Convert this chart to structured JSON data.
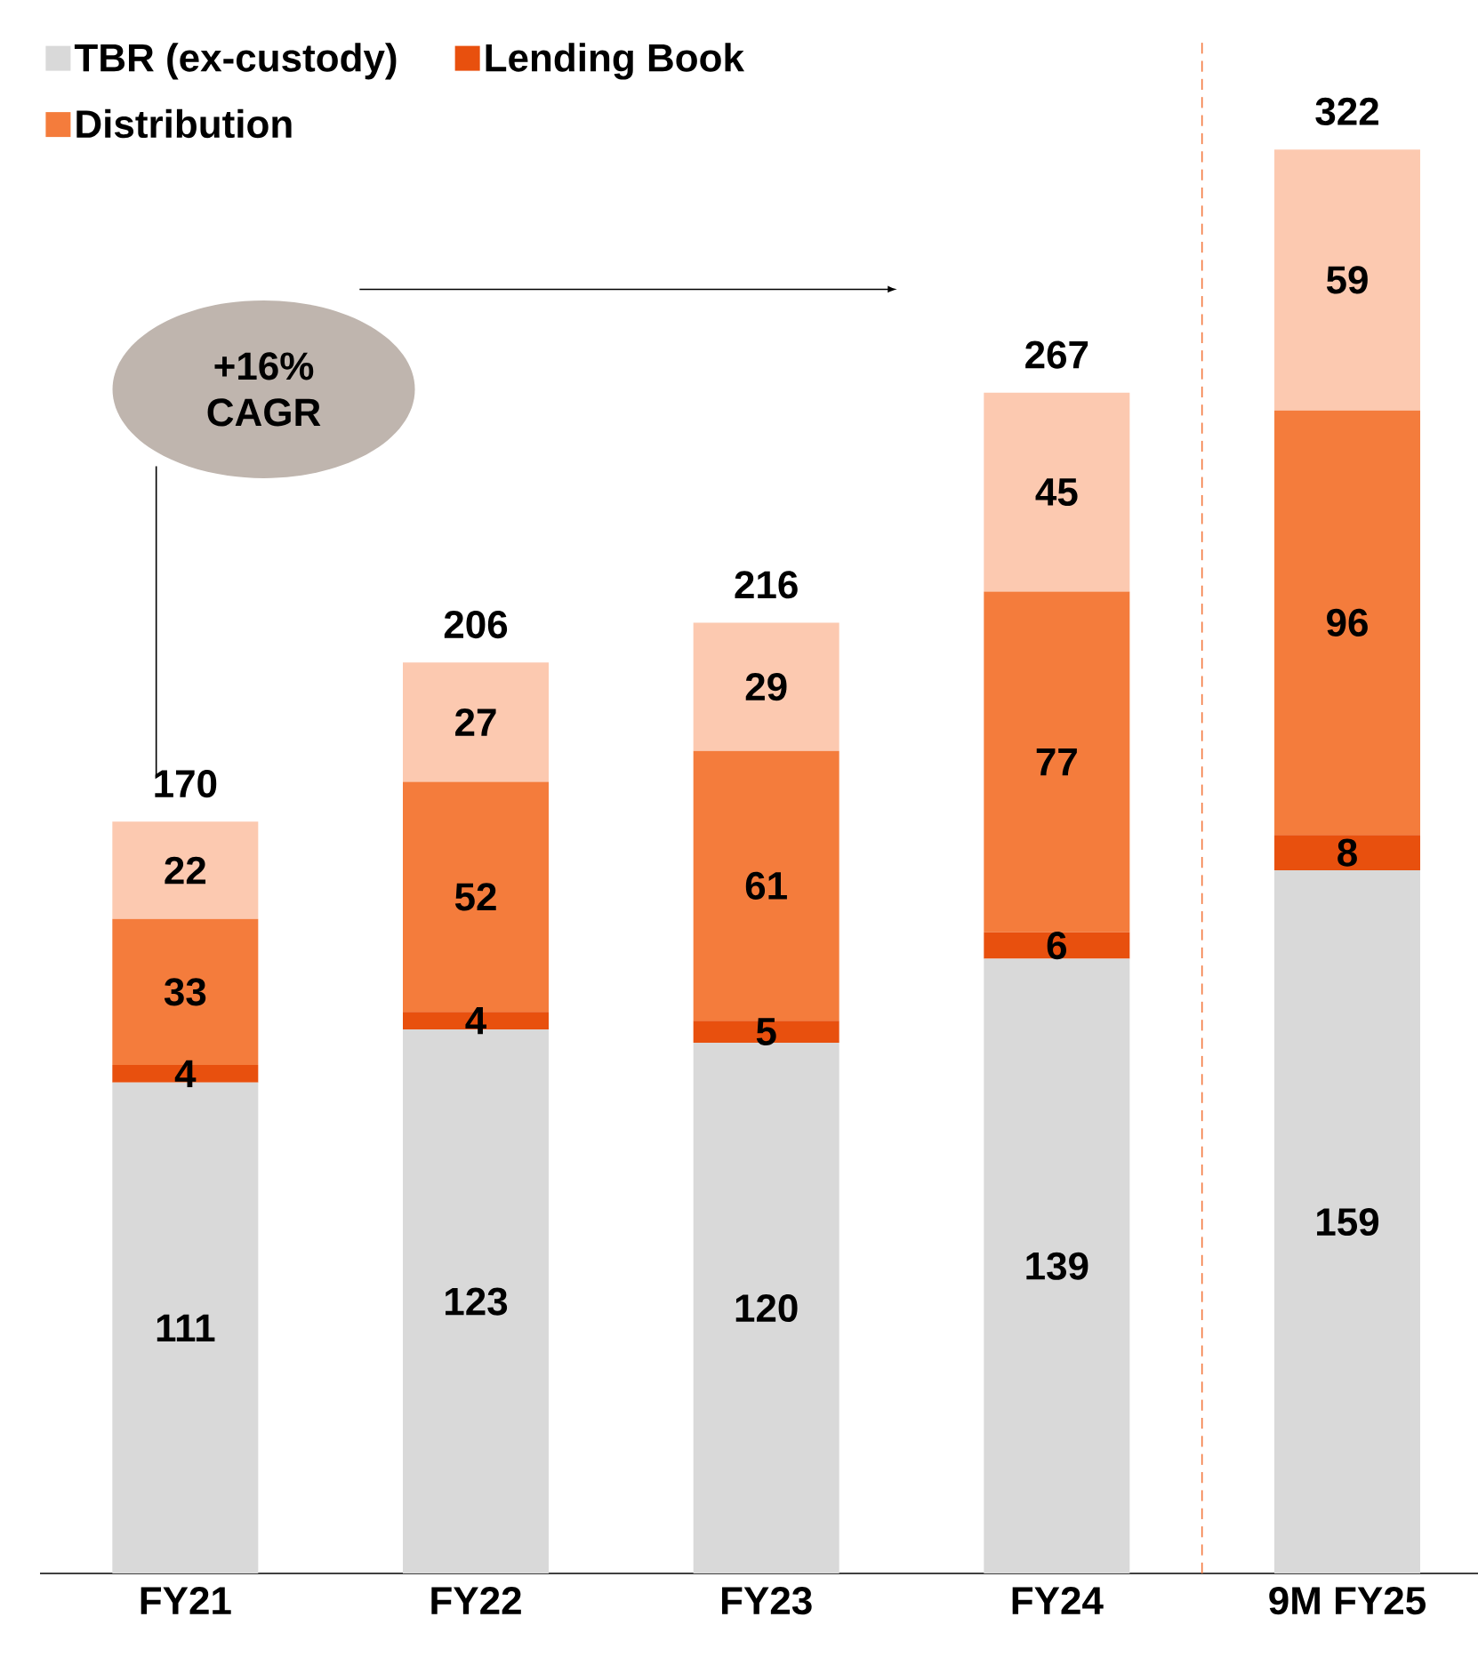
{
  "chart_data": {
    "type": "bar",
    "stacked": true,
    "categories": [
      "FY21",
      "FY22",
      "FY23",
      "FY24",
      "9M FY25"
    ],
    "series": [
      {
        "name": "TBR (ex-custody)",
        "color": "#d9d9d9",
        "values": [
          111,
          123,
          120,
          139,
          159
        ]
      },
      {
        "name": "Lending Book",
        "color": "#e8500e",
        "values": [
          4,
          4,
          5,
          6,
          8
        ]
      },
      {
        "name": "Distribution",
        "color": "#f47c3c",
        "values": [
          33,
          52,
          61,
          77,
          96
        ]
      },
      {
        "color": "#fcc9b0",
        "values": [
          22,
          27,
          29,
          45,
          59
        ]
      }
    ],
    "data_labels": true,
    "totals": [
      "170",
      "206",
      "216",
      "267",
      "322"
    ],
    "legend": "top left",
    "annotations": [
      "+16% CAGR"
    ]
  }
}
